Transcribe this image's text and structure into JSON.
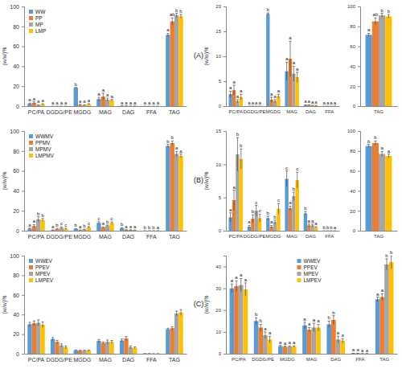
{
  "panel_labels": [
    "(A)",
    "(B)",
    "(C)"
  ],
  "chart_data": [
    {
      "type": "bar",
      "y_label": "(w/w)%",
      "categories": [
        "PC/PA",
        "DGDG/PE",
        "MGDG",
        "MAG",
        "DAG",
        "FFA",
        "TAG"
      ],
      "ylim": [
        0,
        100
      ],
      "yticks": [
        0,
        20,
        40,
        60,
        80,
        100
      ],
      "grid": false,
      "legend": "top-left",
      "series": [
        {
          "name": "WW",
          "color": "#5b9bd5",
          "values": [
            2.4,
            0,
            18.5,
            7,
            0.2,
            0,
            71.5
          ],
          "errors": [
            0.6,
            0,
            0.2,
            1.8,
            0.05,
            0,
            1.5
          ],
          "annotations": [
            "a",
            "a",
            "b",
            "a",
            "a",
            "a",
            "a"
          ]
        },
        {
          "name": "PP",
          "color": "#ed7d31",
          "values": [
            3.2,
            0,
            1.3,
            9.5,
            0.2,
            0,
            85
          ],
          "errors": [
            1.0,
            0,
            0.5,
            3.5,
            0.05,
            0,
            3.5
          ],
          "annotations": [
            "a",
            "a",
            "a",
            "a",
            "a",
            "a",
            "ab"
          ]
        },
        {
          "name": "MP",
          "color": "#a5a5a5",
          "values": [
            1.0,
            0,
            1.0,
            6.5,
            0.1,
            0,
            91
          ],
          "errors": [
            0.3,
            0,
            0.3,
            1.5,
            0.05,
            0,
            2
          ],
          "annotations": [
            "a",
            "a",
            "a",
            "a",
            "a",
            "a",
            "b"
          ]
        },
        {
          "name": "LMP",
          "color": "#ffc000",
          "values": [
            1.8,
            0,
            2.0,
            5.8,
            0.1,
            0,
            90
          ],
          "errors": [
            0.6,
            0,
            0.4,
            1.0,
            0.05,
            0,
            2
          ],
          "annotations": [
            "a",
            "a",
            "a",
            "a",
            "a",
            "a",
            "b"
          ]
        }
      ]
    },
    {
      "type": "bar",
      "y_label": "(w/w)%",
      "categories": [
        "PC/PA",
        "DGDG/PE",
        "MGDG",
        "MAG",
        "DAG",
        "FFA"
      ],
      "ylim": [
        0,
        20
      ],
      "yticks": [
        0,
        5,
        10,
        15,
        20
      ],
      "grid": false,
      "series": [
        {
          "name": "WW",
          "color": "#5b9bd5",
          "values": [
            2.4,
            0,
            18.5,
            7,
            0.2,
            0
          ],
          "errors": [
            0.6,
            0,
            0.2,
            1.8,
            0.05,
            0
          ],
          "annotations": [
            "a",
            "a",
            "b",
            "a",
            "a",
            "a"
          ]
        },
        {
          "name": "PP",
          "color": "#ed7d31",
          "values": [
            3.2,
            0,
            1.3,
            9.5,
            0.2,
            0
          ],
          "errors": [
            1.0,
            0,
            0.5,
            3.5,
            0.05,
            0
          ],
          "annotations": [
            "a",
            "a",
            "a",
            "a",
            "a",
            "a"
          ]
        },
        {
          "name": "MP",
          "color": "#a5a5a5",
          "values": [
            1.0,
            0,
            1.0,
            6.5,
            0.1,
            0
          ],
          "errors": [
            0.3,
            0,
            0.3,
            1.5,
            0.05,
            0
          ],
          "annotations": [
            "a",
            "a",
            "a",
            "a",
            "a",
            "a"
          ]
        },
        {
          "name": "LMP",
          "color": "#ffc000",
          "values": [
            1.8,
            0,
            2.0,
            5.8,
            0.1,
            0
          ],
          "errors": [
            0.6,
            0,
            0.4,
            1.0,
            0.05,
            0
          ],
          "annotations": [
            "a",
            "a",
            "a",
            "a",
            "a",
            "a"
          ]
        }
      ]
    },
    {
      "type": "bar",
      "categories": [
        "TAG"
      ],
      "ylim": [
        0,
        100
      ],
      "yticks": [
        0,
        20,
        40,
        60,
        80,
        100
      ],
      "grid": false,
      "series": [
        {
          "name": "WW",
          "color": "#5b9bd5",
          "values": [
            71.5
          ],
          "errors": [
            1.5
          ],
          "annotations": [
            "a"
          ]
        },
        {
          "name": "PP",
          "color": "#ed7d31",
          "values": [
            85
          ],
          "errors": [
            3.5
          ],
          "annotations": [
            "ab"
          ]
        },
        {
          "name": "MP",
          "color": "#a5a5a5",
          "values": [
            91
          ],
          "errors": [
            2
          ],
          "annotations": [
            "b"
          ]
        },
        {
          "name": "LMP",
          "color": "#ffc000",
          "values": [
            90
          ],
          "errors": [
            2
          ],
          "annotations": [
            "b"
          ]
        }
      ]
    },
    {
      "type": "bar",
      "y_label": "(w/w)%",
      "categories": [
        "PC/PA",
        "DGDG/PE",
        "MGDG",
        "MAG",
        "DAG",
        "FFA",
        "TAG"
      ],
      "ylim": [
        0,
        100
      ],
      "yticks": [
        0,
        20,
        40,
        60,
        80,
        100
      ],
      "grid": false,
      "legend": "top-left",
      "series": [
        {
          "name": "WWMV",
          "color": "#5b9bd5",
          "values": [
            2.0,
            0.6,
            1.9,
            7.8,
            2.6,
            0,
            85
          ],
          "errors": [
            0.7,
            0.2,
            0.3,
            1.2,
            0.3,
            0,
            1.5
          ],
          "annotations": [
            "a",
            "a",
            "b",
            "c",
            "b",
            "b",
            "b"
          ]
        },
        {
          "name": "PPMV",
          "color": "#ed7d31",
          "values": [
            4.6,
            1.8,
            0.6,
            3.4,
            0.8,
            0,
            88
          ],
          "errors": [
            1.5,
            0.6,
            0.2,
            0.3,
            0.2,
            0,
            2
          ],
          "annotations": [
            "a",
            "b",
            "a",
            "a",
            "a",
            "b",
            "b"
          ]
        },
        {
          "name": "MPMV",
          "color": "#a5a5a5",
          "values": [
            11.5,
            3.0,
            1.3,
            5.2,
            0.8,
            0,
            77
          ],
          "errors": [
            2.5,
            0.8,
            0.3,
            0.6,
            0.2,
            0,
            2.5
          ],
          "annotations": [
            "b",
            "c",
            "b",
            "b",
            "a",
            "b",
            "a"
          ]
        },
        {
          "name": "LMPMV",
          "color": "#ffc000",
          "values": [
            10.8,
            1.9,
            3.3,
            7.6,
            0.5,
            0,
            75
          ],
          "errors": [
            1.5,
            0.6,
            0.8,
            1.2,
            0.1,
            0,
            2
          ],
          "annotations": [
            "b",
            "c",
            "c",
            "c",
            "a",
            "a",
            "a"
          ]
        }
      ]
    },
    {
      "type": "bar",
      "y_label": "(w/w)%",
      "categories": [
        "PC/PA",
        "DGDG/PE",
        "MGDG",
        "MAG",
        "DAG",
        "FFA"
      ],
      "ylim": [
        0,
        15
      ],
      "yticks": [
        0,
        5,
        10,
        15
      ],
      "grid": false,
      "series": [
        {
          "name": "WWMV",
          "color": "#5b9bd5",
          "values": [
            2.0,
            0.6,
            1.9,
            7.8,
            2.6,
            0
          ],
          "errors": [
            0.7,
            0.2,
            0.3,
            1.2,
            0.3,
            0
          ],
          "annotations": [
            "a",
            "a",
            "b",
            "c",
            "b",
            "b"
          ]
        },
        {
          "name": "PPMV",
          "color": "#ed7d31",
          "values": [
            4.6,
            1.8,
            0.6,
            3.4,
            0.8,
            0
          ],
          "errors": [
            1.5,
            0.6,
            0.2,
            0.3,
            0.2,
            0
          ],
          "annotations": [
            "a",
            "b",
            "a",
            "a",
            "a",
            "b"
          ]
        },
        {
          "name": "MPMV",
          "color": "#a5a5a5",
          "values": [
            11.5,
            3.0,
            1.3,
            5.2,
            0.8,
            0
          ],
          "errors": [
            2.5,
            0.8,
            0.3,
            0.6,
            0.2,
            0
          ],
          "annotations": [
            "b",
            "c",
            "b",
            "b",
            "a",
            "b"
          ]
        },
        {
          "name": "LMPMV",
          "color": "#ffc000",
          "values": [
            10.8,
            1.9,
            3.3,
            7.6,
            0.5,
            0
          ],
          "errors": [
            1.5,
            0.6,
            0.8,
            1.2,
            0.1,
            0
          ],
          "annotations": [
            "b",
            "c",
            "c",
            "c",
            "a",
            "a"
          ]
        }
      ]
    },
    {
      "type": "bar",
      "categories": [
        "TAG"
      ],
      "ylim": [
        0,
        100
      ],
      "yticks": [
        0,
        20,
        40,
        60,
        80,
        100
      ],
      "grid": false,
      "series": [
        {
          "name": "WWMV",
          "color": "#5b9bd5",
          "values": [
            85
          ],
          "errors": [
            1.5
          ],
          "annotations": [
            "b"
          ]
        },
        {
          "name": "PPMV",
          "color": "#ed7d31",
          "values": [
            88
          ],
          "errors": [
            2
          ],
          "annotations": [
            "b"
          ]
        },
        {
          "name": "MPMV",
          "color": "#a5a5a5",
          "values": [
            77
          ],
          "errors": [
            2.5
          ],
          "annotations": [
            "a"
          ]
        },
        {
          "name": "LMPMV",
          "color": "#ffc000",
          "values": [
            75
          ],
          "errors": [
            2
          ],
          "annotations": [
            "a"
          ]
        }
      ]
    },
    {
      "type": "bar",
      "y_label": "(w/w)%",
      "categories": [
        "PC/PA",
        "DGDG/PE",
        "MGDG",
        "MAG",
        "DAG",
        "FFA",
        "TAG"
      ],
      "ylim": [
        0,
        100
      ],
      "yticks": [
        0,
        20,
        40,
        60,
        80,
        100
      ],
      "grid": false,
      "legend": "top-left",
      "series": [
        {
          "name": "WWEV",
          "color": "#5b9bd5",
          "values": [
            30,
            15,
            3.5,
            13,
            13.5,
            0.2,
            25
          ],
          "errors": [
            2,
            1.5,
            0.3,
            1.5,
            1.5,
            0,
            1
          ]
        },
        {
          "name": "PPEV",
          "color": "#ed7d31",
          "values": [
            31,
            12,
            3.2,
            11,
            15.5,
            0.2,
            26
          ],
          "errors": [
            2.5,
            1.5,
            0.3,
            1,
            2,
            0,
            1.5
          ]
        },
        {
          "name": "MPEV",
          "color": "#a5a5a5",
          "values": [
            31.5,
            8.5,
            3.3,
            12,
            6.5,
            0.1,
            41
          ],
          "errors": [
            3,
            1.5,
            0.3,
            2,
            1.5,
            0,
            2.5
          ]
        },
        {
          "name": "LMPEV",
          "color": "#ffc000",
          "values": [
            29.5,
            6.5,
            3.3,
            12,
            6,
            0.1,
            42
          ],
          "errors": [
            3,
            1.5,
            0.3,
            1.5,
            1,
            0,
            3
          ]
        }
      ]
    },
    {
      "type": "bar",
      "y_label": "(w/w)%",
      "categories": [
        "PC/PA",
        "DGDG/PE",
        "MGDG",
        "MAG",
        "DAG",
        "FFA",
        "TAG"
      ],
      "ylim": [
        0,
        45
      ],
      "yticks": [
        0,
        10,
        20,
        30,
        40
      ],
      "grid": false,
      "legend": "top",
      "series": [
        {
          "name": "WWEV",
          "color": "#5b9bd5",
          "values": [
            30,
            15,
            3.5,
            13,
            13.5,
            0.2,
            25
          ],
          "errors": [
            2,
            1.5,
            0.3,
            1.5,
            1.5,
            0,
            1
          ],
          "annotations": [
            "a",
            "b",
            "a",
            "a",
            "b",
            "a",
            "a"
          ]
        },
        {
          "name": "PPEV",
          "color": "#ed7d31",
          "values": [
            31,
            12,
            3.2,
            11,
            15.5,
            0.2,
            26
          ],
          "errors": [
            2.5,
            1.5,
            0.3,
            1,
            2,
            0,
            1.5
          ],
          "annotations": [
            "a",
            "b",
            "a",
            "a",
            "b",
            "a",
            "a"
          ]
        },
        {
          "name": "MPEV",
          "color": "#a5a5a5",
          "values": [
            31.5,
            8.5,
            3.3,
            12,
            6.5,
            0.1,
            41
          ],
          "errors": [
            3,
            1.5,
            0.3,
            2,
            1.5,
            0,
            2.5
          ],
          "annotations": [
            "a",
            "a",
            "a",
            "a",
            "a",
            "a",
            "b"
          ]
        },
        {
          "name": "LMPEV",
          "color": "#ffc000",
          "values": [
            29.5,
            6.5,
            3.3,
            12,
            6,
            0.1,
            42
          ],
          "errors": [
            3,
            1.5,
            0.3,
            1.5,
            1,
            0,
            3
          ],
          "annotations": [
            "a",
            "a",
            "a",
            "a",
            "a",
            "a",
            "b"
          ]
        }
      ]
    }
  ]
}
